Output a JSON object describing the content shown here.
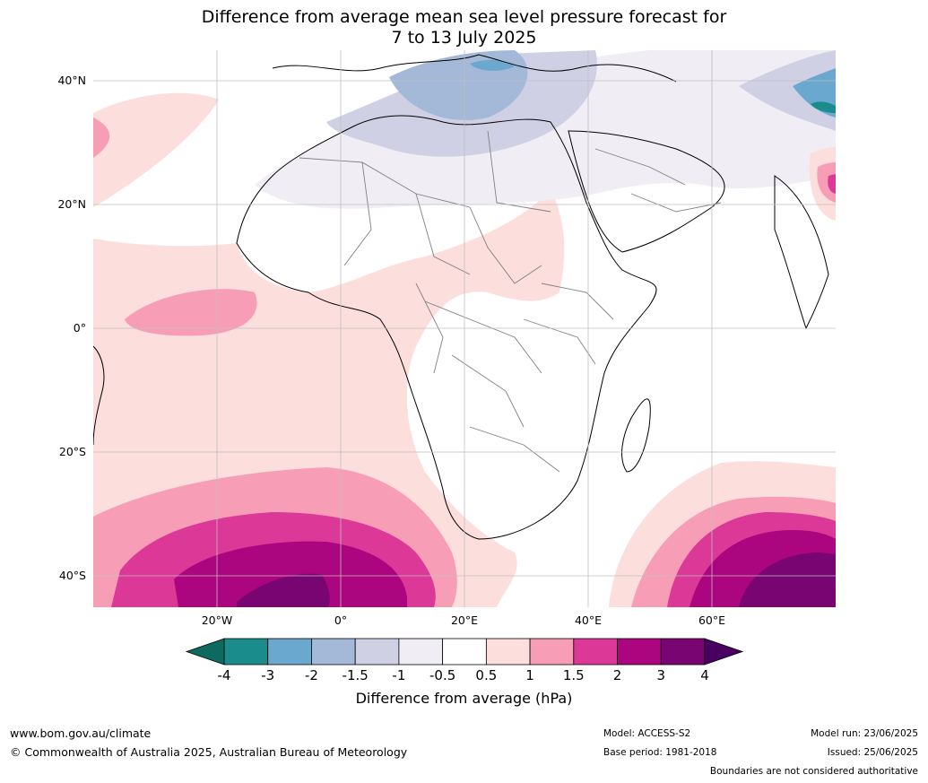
{
  "title_line1": "Difference from average mean sea level pressure forecast for",
  "title_line2": "7 to 13 July 2025",
  "lat_labels": [
    "40°N",
    "20°N",
    "0°",
    "20°S",
    "40°S"
  ],
  "lon_labels": [
    "20°W",
    "0°",
    "20°E",
    "40°E",
    "60°E"
  ],
  "colorbar": {
    "ticks": [
      "-4",
      "-3",
      "-2",
      "-1.5",
      "-1",
      "-0.5",
      "0.5",
      "1",
      "1.5",
      "2",
      "3",
      "4"
    ],
    "colors": [
      "#1a8c8c",
      "#6aa8cf",
      "#a4b9d8",
      "#cfd0e4",
      "#f1edf4",
      "#ffffff",
      "#fcdedc",
      "#f89db6",
      "#db3898",
      "#ac0580",
      "#790572"
    ],
    "under_color": "#0c6a5e",
    "over_color": "#4a0060",
    "label": "Difference from average (hPa)"
  },
  "footer": {
    "website": "www.bom.gov.au/climate",
    "copyright": "© Commonwealth of Australia 2025, Australian Bureau of Meteorology",
    "model": "Model: ACCESS-S2",
    "base_period": "Base period: 1981-2018",
    "model_run": "Model run: 23/06/2025",
    "issued": "Issued: 25/06/2025",
    "disclaimer": "Boundaries are not considered authoritative"
  }
}
